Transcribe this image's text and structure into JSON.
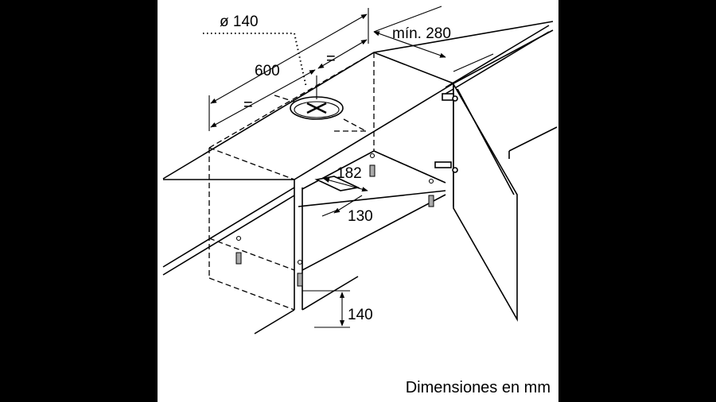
{
  "diagram": {
    "labels": {
      "diameter": "ø 140",
      "width": "600",
      "min_depth": "mín. 280",
      "equal_left": "=",
      "equal_right": "=",
      "offset_182": "182",
      "offset_130": "130",
      "height_140": "140"
    },
    "caption": "Dimensiones en mm"
  }
}
